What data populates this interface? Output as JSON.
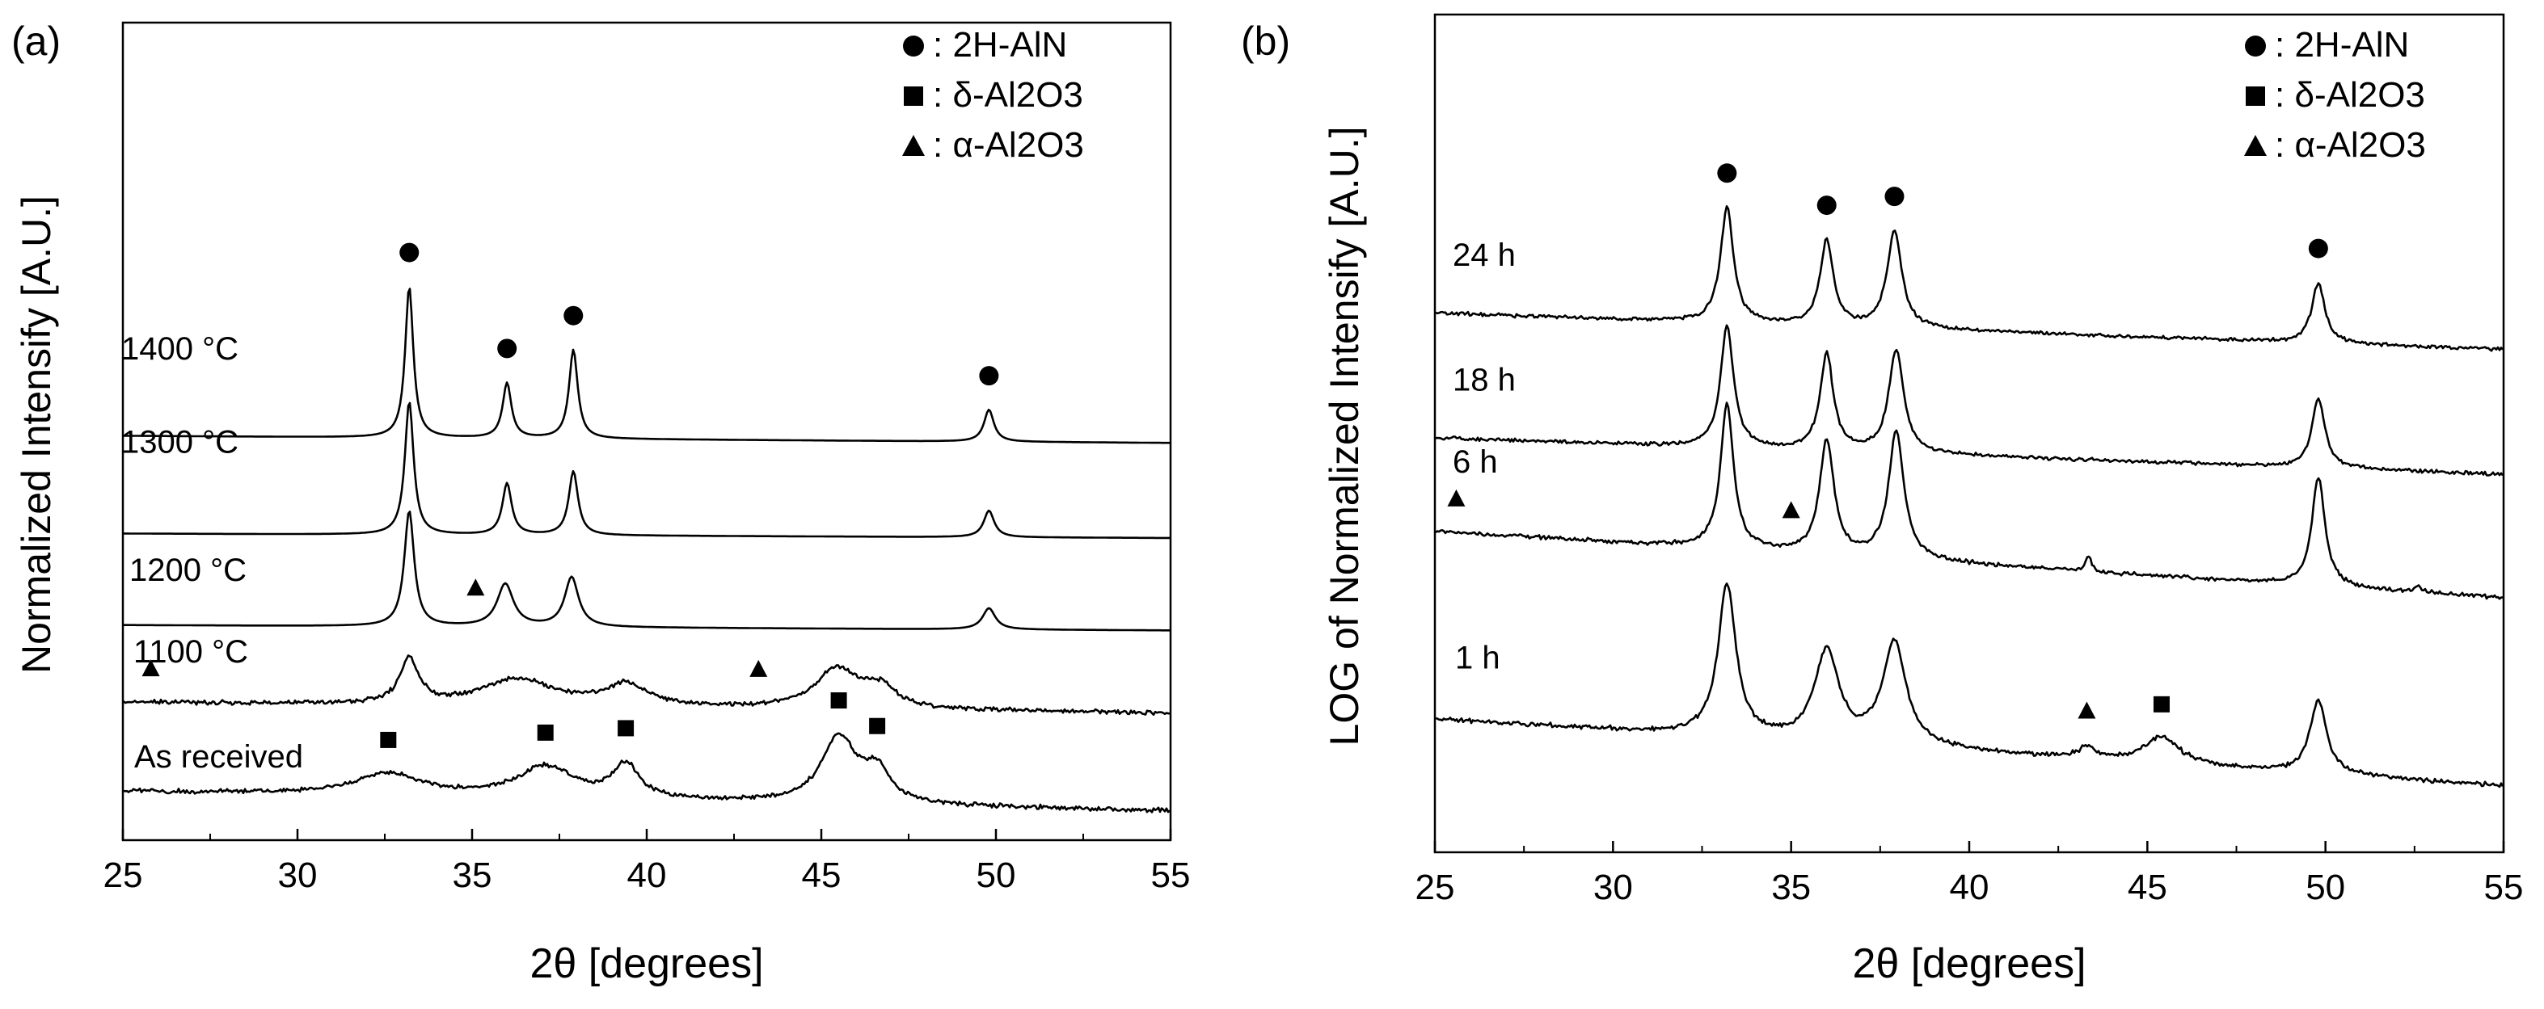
{
  "chart_data": [
    {
      "panel_label": "(a)",
      "type": "line",
      "xlabel": "2θ [degrees]",
      "ylabel": "Normalized Intensify [A.U.]",
      "xlim": [
        25,
        55
      ],
      "xticks": [
        "25",
        "30",
        "35",
        "40",
        "45",
        "50",
        "55"
      ],
      "yticks": "none",
      "grid": false,
      "legend_position": "top-right",
      "legend": [
        {
          "marker": "circle",
          "text": ": 2H-AlN"
        },
        {
          "marker": "square",
          "text": ": δ-Al2O3"
        },
        {
          "marker": "triangle",
          "text": ": α-Al2O3"
        }
      ],
      "series": [
        {
          "name": "1400 °C",
          "baseline_offset": 4.55,
          "tail_drop": 0.08,
          "noise": 0,
          "peaks": [
            {
              "x": 33.2,
              "h": 1.7,
              "w": 0.14
            },
            {
              "x": 36.0,
              "h": 0.62,
              "w": 0.15
            },
            {
              "x": 37.9,
              "h": 1.0,
              "w": 0.15
            },
            {
              "x": 49.8,
              "h": 0.36,
              "w": 0.17
            }
          ],
          "markers": [
            {
              "x": 33.2,
              "type": "circle"
            },
            {
              "x": 36.0,
              "type": "circle"
            },
            {
              "x": 37.9,
              "type": "circle"
            },
            {
              "x": 49.8,
              "type": "circle"
            }
          ]
        },
        {
          "name": "1300 °C",
          "baseline_offset": 3.45,
          "tail_drop": 0.05,
          "noise": 0,
          "peaks": [
            {
              "x": 33.2,
              "h": 1.5,
              "w": 0.15
            },
            {
              "x": 36.0,
              "h": 0.58,
              "w": 0.16
            },
            {
              "x": 37.9,
              "h": 0.72,
              "w": 0.16
            },
            {
              "x": 49.8,
              "h": 0.3,
              "w": 0.18
            }
          ],
          "markers": []
        },
        {
          "name": "1200 °C",
          "baseline_offset": 2.42,
          "tail_drop": 0.06,
          "noise": 0,
          "peaks": [
            {
              "x": 33.2,
              "h": 1.3,
              "w": 0.17
            },
            {
              "x": 35.95,
              "h": 0.48,
              "w": 0.28
            },
            {
              "x": 37.85,
              "h": 0.56,
              "w": 0.24
            },
            {
              "x": 49.8,
              "h": 0.24,
              "w": 0.22
            }
          ],
          "markers": [
            {
              "x": 35.1,
              "type": "triangle"
            }
          ]
        },
        {
          "name": "1100 °C",
          "baseline_offset": 1.55,
          "tail_drop": 0.12,
          "noise": 0.03,
          "peaks": [
            {
              "x": 33.2,
              "h": 0.5,
              "w": 0.32
            },
            {
              "x": 36.3,
              "h": 0.3,
              "w": 1.3
            },
            {
              "x": 39.4,
              "h": 0.24,
              "w": 0.7
            },
            {
              "x": 45.45,
              "h": 0.45,
              "w": 0.75
            },
            {
              "x": 46.7,
              "h": 0.22,
              "w": 0.55
            }
          ],
          "markers": [
            {
              "x": 25.8,
              "type": "triangle"
            },
            {
              "x": 43.2,
              "type": "triangle"
            }
          ]
        },
        {
          "name": "As received",
          "baseline_offset": 0.55,
          "tail_drop": 0.22,
          "noise": 0.03,
          "peaks": [
            {
              "x": 32.6,
              "h": 0.25,
              "w": 1.2
            },
            {
              "x": 37.1,
              "h": 0.35,
              "w": 1.0
            },
            {
              "x": 39.4,
              "h": 0.38,
              "w": 0.45
            },
            {
              "x": 45.5,
              "h": 0.75,
              "w": 0.6
            },
            {
              "x": 46.6,
              "h": 0.35,
              "w": 0.45
            }
          ],
          "markers": [
            {
              "x": 32.6,
              "type": "square"
            },
            {
              "x": 37.1,
              "type": "square"
            },
            {
              "x": 39.4,
              "type": "square"
            },
            {
              "x": 45.5,
              "type": "square"
            },
            {
              "x": 46.6,
              "type": "square"
            }
          ]
        }
      ]
    },
    {
      "panel_label": "(b)",
      "type": "line",
      "xlabel": "2θ [degrees]",
      "ylabel": "LOG of Normalized Intensify [A.U.]",
      "xlim": [
        25,
        55
      ],
      "xticks": [
        "25",
        "30",
        "35",
        "40",
        "45",
        "50",
        "55"
      ],
      "yticks": "none",
      "grid": false,
      "legend_position": "top-right",
      "legend": [
        {
          "marker": "circle",
          "text": ": 2H-AlN"
        },
        {
          "marker": "square",
          "text": ": δ-Al2O3"
        },
        {
          "marker": "triangle",
          "text": ": α-Al2O3"
        }
      ],
      "series": [
        {
          "name": "24 h",
          "baseline_offset": 4.45,
          "tail_drop": 0.3,
          "noise": 0.018,
          "peaks": [
            {
              "x": 33.2,
              "h": 0.95,
              "w": 0.22
            },
            {
              "x": 36.0,
              "h": 0.7,
              "w": 0.22
            },
            {
              "x": 37.9,
              "h": 0.8,
              "w": 0.25
            },
            {
              "x": 49.8,
              "h": 0.5,
              "w": 0.22
            }
          ],
          "markers": [
            {
              "x": 33.2,
              "type": "circle"
            },
            {
              "x": 36.0,
              "type": "circle"
            },
            {
              "x": 37.9,
              "type": "circle"
            },
            {
              "x": 49.8,
              "type": "circle"
            }
          ]
        },
        {
          "name": "18 h",
          "baseline_offset": 3.42,
          "tail_drop": 0.3,
          "noise": 0.018,
          "peaks": [
            {
              "x": 33.2,
              "h": 1.0,
              "w": 0.22
            },
            {
              "x": 36.0,
              "h": 0.8,
              "w": 0.22
            },
            {
              "x": 37.95,
              "h": 0.85,
              "w": 0.25
            },
            {
              "x": 49.8,
              "h": 0.58,
              "w": 0.22
            }
          ],
          "markers": []
        },
        {
          "name": "6 h",
          "baseline_offset": 2.65,
          "tail_drop": 0.55,
          "noise": 0.02,
          "peaks": [
            {
              "x": 33.2,
              "h": 1.2,
              "w": 0.22
            },
            {
              "x": 36.0,
              "h": 0.95,
              "w": 0.24
            },
            {
              "x": 37.95,
              "h": 1.05,
              "w": 0.26
            },
            {
              "x": 43.35,
              "h": 0.12,
              "w": 0.1
            },
            {
              "x": 49.8,
              "h": 0.9,
              "w": 0.22
            },
            {
              "x": 52.6,
              "h": 0.05,
              "w": 0.1
            }
          ],
          "markers": [
            {
              "x": 25.6,
              "type": "triangle"
            },
            {
              "x": 35.0,
              "type": "triangle"
            }
          ]
        },
        {
          "name": "1 h",
          "baseline_offset": 1.1,
          "tail_drop": 0.55,
          "noise": 0.022,
          "peaks": [
            {
              "x": 33.2,
              "h": 1.25,
              "w": 0.3
            },
            {
              "x": 36.0,
              "h": 0.75,
              "w": 0.4
            },
            {
              "x": 37.9,
              "h": 0.85,
              "w": 0.4
            },
            {
              "x": 43.3,
              "h": 0.1,
              "w": 0.25
            },
            {
              "x": 45.4,
              "h": 0.22,
              "w": 0.6
            },
            {
              "x": 49.8,
              "h": 0.6,
              "w": 0.28
            }
          ],
          "markers": [
            {
              "x": 43.3,
              "type": "triangle"
            },
            {
              "x": 45.4,
              "type": "square"
            }
          ]
        }
      ]
    }
  ]
}
